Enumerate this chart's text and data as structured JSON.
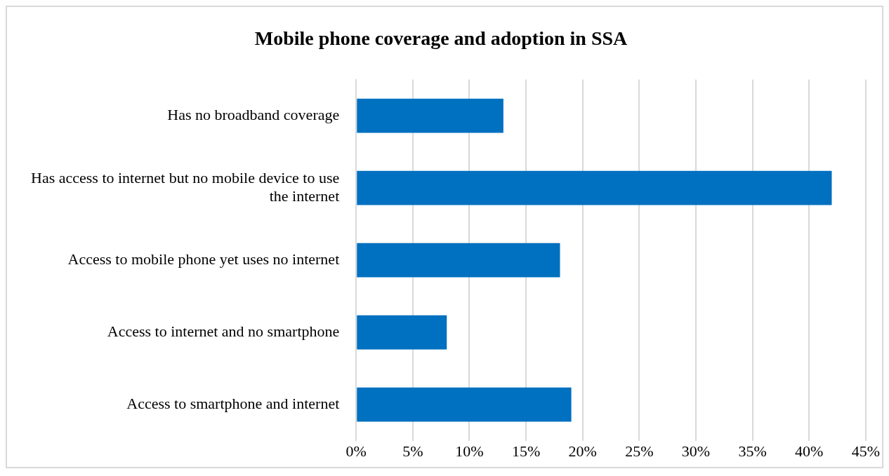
{
  "chart_data": {
    "type": "bar",
    "orientation": "horizontal",
    "title": "Mobile phone coverage and adoption in SSA",
    "categories": [
      "Has no broadband coverage",
      "Has access to internet but no mobile device to use the internet",
      "Access to mobile phone yet uses no internet",
      "Access to internet and no smartphone",
      "Access to smartphone and internet"
    ],
    "values": [
      13,
      42,
      18,
      8,
      19
    ],
    "color": "#0070c0",
    "xlim": [
      0,
      45
    ],
    "xticks": [
      {
        "value": 0,
        "label": "0%"
      },
      {
        "value": 5,
        "label": "5%"
      },
      {
        "value": 10,
        "label": "10%"
      },
      {
        "value": 15,
        "label": "15%"
      },
      {
        "value": 20,
        "label": "20%"
      },
      {
        "value": 25,
        "label": "25%"
      },
      {
        "value": 30,
        "label": "30%"
      },
      {
        "value": 35,
        "label": "35%"
      },
      {
        "value": 40,
        "label": "40%"
      },
      {
        "value": 45,
        "label": "45%"
      }
    ],
    "grid": "x",
    "legend": false
  }
}
